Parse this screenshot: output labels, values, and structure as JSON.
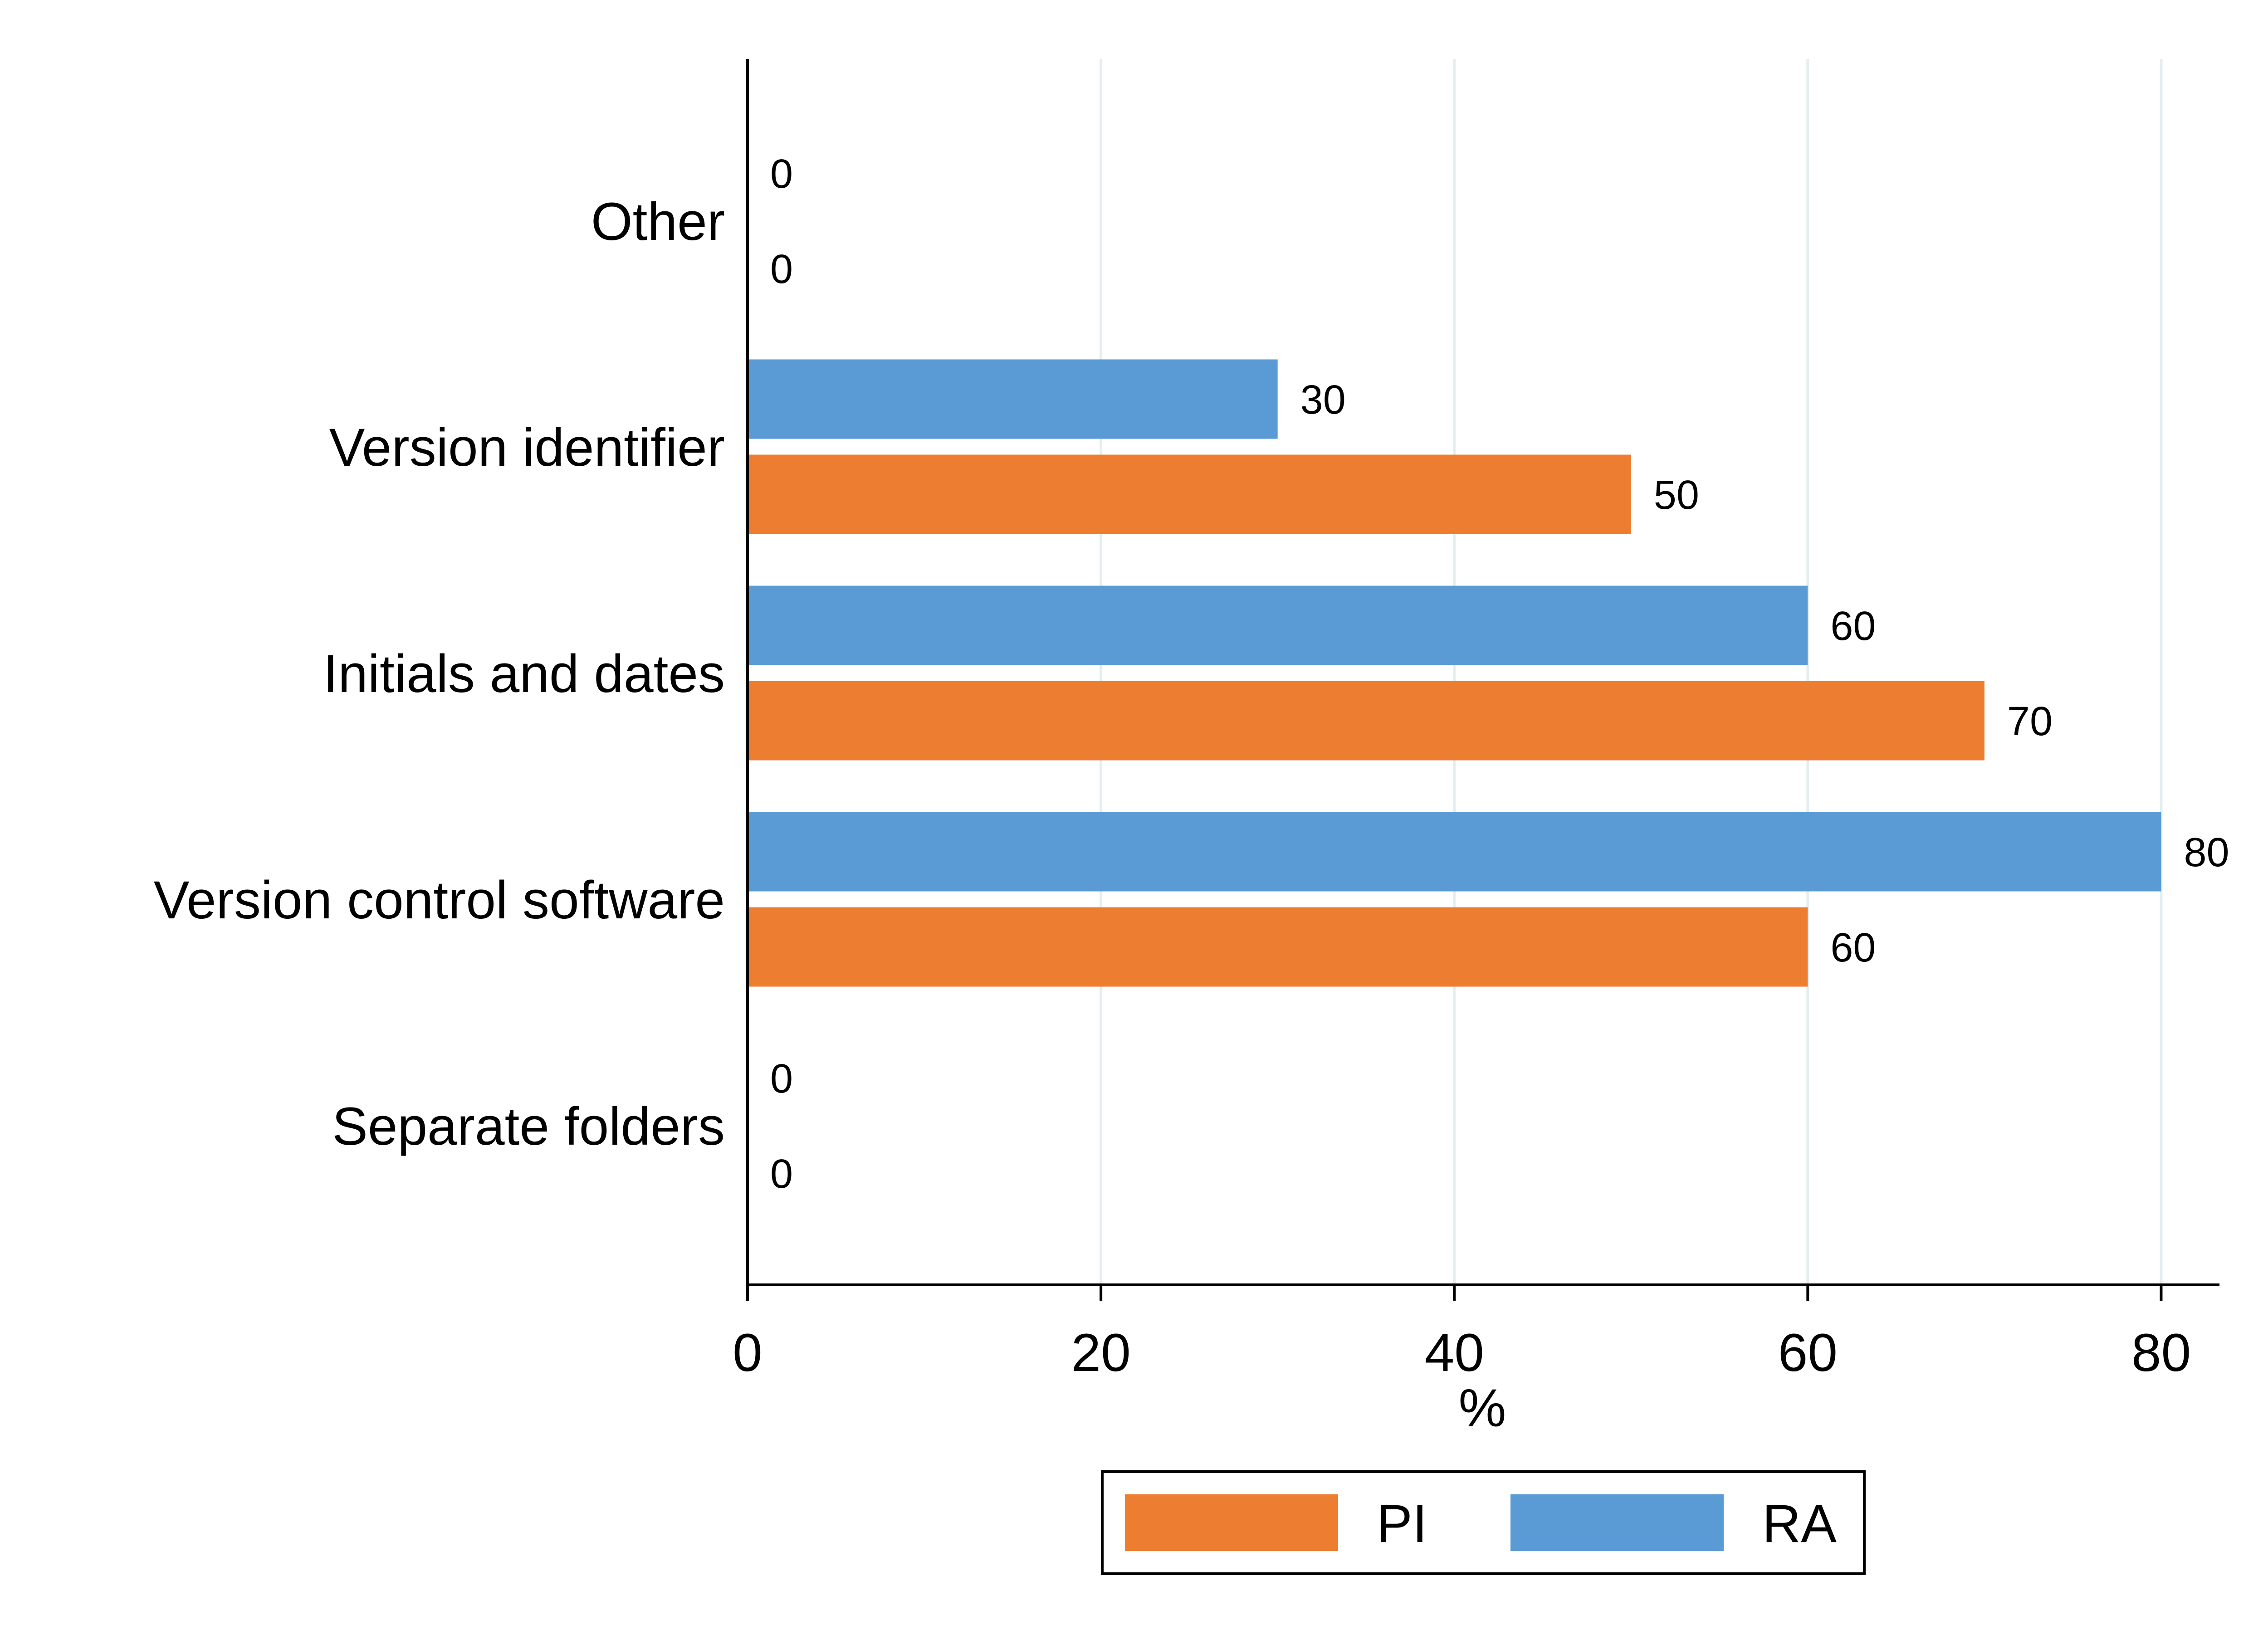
{
  "chart_data": {
    "type": "bar",
    "orientation": "horizontal",
    "categories": [
      "Other",
      "Version identifier",
      "Initials and dates",
      "Version control software",
      "Separate folders"
    ],
    "series": [
      {
        "name": "RA",
        "color": "#5b9bd5",
        "values": [
          0,
          30,
          60,
          80,
          0
        ]
      },
      {
        "name": "PI",
        "color": "#ed7d31",
        "values": [
          0,
          50,
          70,
          60,
          0
        ]
      }
    ],
    "xlabel": "%",
    "ylabel": "",
    "xlim": [
      0,
      83.3
    ],
    "xticks": [
      0,
      20,
      40,
      60,
      80
    ],
    "grid": "vertical",
    "grid_color": "#e3eef1",
    "legend": {
      "placement": "bottom-center",
      "entries": [
        {
          "name": "PI",
          "color": "#ed7d31"
        },
        {
          "name": "RA",
          "color": "#5b9bd5"
        }
      ]
    }
  }
}
